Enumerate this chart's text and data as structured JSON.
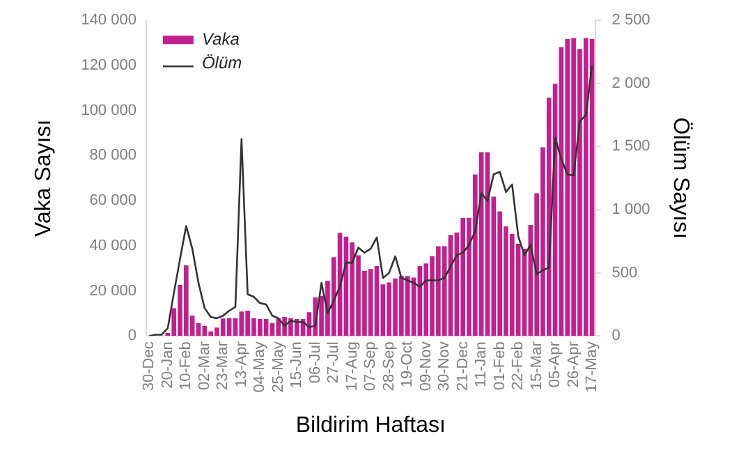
{
  "chart_data": {
    "type": "bar",
    "xlabel": "Bildirim Haftası",
    "ylabel": "Vaka Sayısı",
    "y2label": "Ölüm Sayısı",
    "categories": [
      "30-Dec",
      null,
      null,
      "20-Jan",
      null,
      null,
      "10-Feb",
      null,
      null,
      "02-Mar",
      null,
      null,
      "23-Mar",
      null,
      null,
      "13-Apr",
      null,
      null,
      "04-May",
      null,
      null,
      "25-May",
      null,
      null,
      "15-Jun",
      null,
      null,
      "06-Jul",
      null,
      null,
      "27-Jul",
      null,
      null,
      "17-Aug",
      null,
      null,
      "07-Sep",
      null,
      null,
      "28-Sep",
      null,
      null,
      "19-Oct",
      null,
      null,
      "09-Nov",
      null,
      null,
      "30-Nov",
      null,
      null,
      "21-Dec",
      null,
      null,
      "11-Jan",
      null,
      null,
      "01-Feb",
      null,
      null,
      "22-Feb",
      null,
      null,
      "15-Mar",
      null,
      null,
      "05-Apr",
      null,
      null,
      "26-Apr",
      null,
      null,
      "17-May"
    ],
    "series": [
      {
        "name": "Vaka",
        "color": "#c21f8f",
        "values": [
          0,
          0,
          0,
          1300,
          12300,
          22600,
          31400,
          9000,
          5700,
          4400,
          2000,
          3700,
          7700,
          7900,
          7900,
          10800,
          11200,
          7900,
          7500,
          7500,
          5700,
          7700,
          8400,
          7900,
          7500,
          7500,
          10500,
          17100,
          17800,
          24400,
          34900,
          45700,
          44000,
          41500,
          35800,
          28800,
          29700,
          31000,
          22900,
          23700,
          25500,
          26600,
          26600,
          25900,
          31000,
          32100,
          35400,
          39800,
          39800,
          44800,
          45900,
          52300,
          52300,
          71600,
          81500,
          81500,
          61800,
          55200,
          48600,
          45300,
          40900,
          38700,
          49200,
          63300,
          83700,
          105700,
          111900,
          128100,
          131700,
          132100,
          127300,
          132100,
          131700
        ]
      },
      {
        "name": "Ölüm",
        "type": "line",
        "axis": "y2",
        "color": "#333333",
        "values": [
          0,
          10,
          10,
          60,
          340,
          610,
          870,
          690,
          420,
          220,
          150,
          140,
          160,
          200,
          230,
          1560,
          330,
          310,
          260,
          250,
          160,
          140,
          80,
          120,
          110,
          110,
          70,
          80,
          420,
          180,
          280,
          390,
          580,
          580,
          700,
          660,
          690,
          780,
          460,
          500,
          630,
          460,
          440,
          420,
          390,
          440,
          440,
          440,
          460,
          550,
          640,
          660,
          720,
          830,
          1130,
          1070,
          1280,
          1300,
          1140,
          1200,
          790,
          640,
          720,
          490,
          520,
          540,
          1570,
          1400,
          1280,
          1270,
          1700,
          1750,
          2140
        ]
      }
    ],
    "ylim": [
      0,
      140000
    ],
    "yticks": [
      0,
      {
        "value": 20000,
        "label": "20 000"
      },
      {
        "value": 40000,
        "label": "40 000"
      },
      {
        "value": 60000,
        "label": "60 000"
      },
      {
        "value": 80000,
        "label": "80 000"
      },
      {
        "value": 100000,
        "label": "100 000"
      },
      {
        "value": 120000,
        "label": "120 000"
      },
      {
        "value": 140000,
        "label": "140 000"
      }
    ],
    "y2lim": [
      0,
      2500
    ],
    "y2ticks": [
      0,
      500,
      {
        "value": 1000,
        "label": "1 000"
      },
      {
        "value": 1500,
        "label": "1 500"
      },
      {
        "value": 2000,
        "label": "2 000"
      },
      {
        "value": 2500,
        "label": "2 500"
      }
    ],
    "grid": false,
    "legend": "top left",
    "marker": "none",
    "line_style": "solid"
  }
}
